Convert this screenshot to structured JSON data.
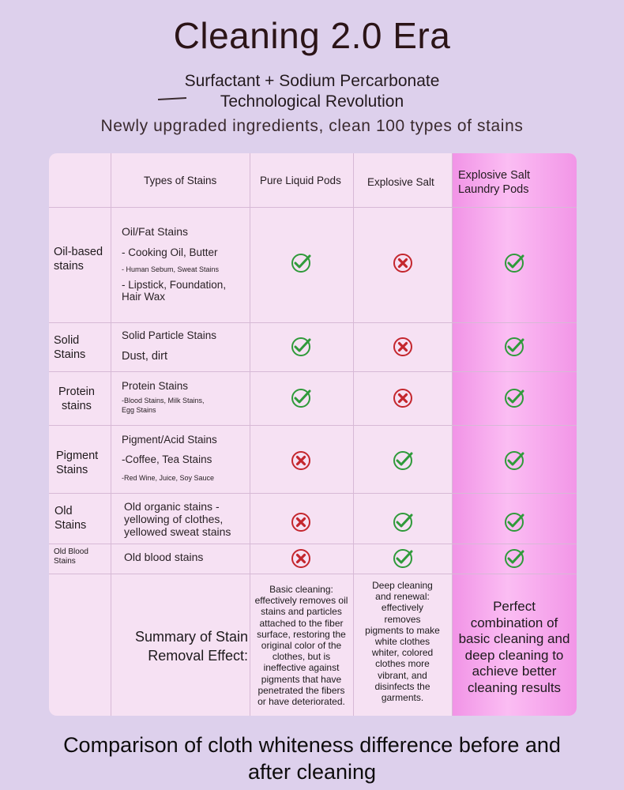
{
  "header": {
    "title": "Cleaning 2.0 Era",
    "subtitle_line1": "Surfactant + Sodium Percarbonate",
    "subtitle_line2": "Technological Revolution",
    "tagline": "Newly upgraded ingredients, clean 100 types of stains"
  },
  "table": {
    "headers": {
      "types": "Types of Stains",
      "col1": "Pure Liquid Pods",
      "col2": "Explosive Salt",
      "col3_line1": "Explosive Salt",
      "col3_line2": "Laundry Pods"
    },
    "rows": [
      {
        "category_line1": "Oil-based",
        "category_line2": "stains",
        "stain_lines": [
          "Oil/Fat Stains",
          "- Cooking Oil, Butter",
          "- Human Sebum, Sweat Stains",
          "- Lipstick, Foundation,",
          "Hair Wax"
        ],
        "marks": [
          "check",
          "cross",
          "check"
        ]
      },
      {
        "category_line1": "Solid",
        "category_line2": "Stains",
        "stain_lines": [
          "Solid Particle Stains",
          "Dust, dirt"
        ],
        "marks": [
          "check",
          "cross",
          "check"
        ]
      },
      {
        "category_line1": "Protein",
        "category_line2": "stains",
        "stain_lines": [
          "Protein Stains",
          "-Blood Stains, Milk Stains,",
          "Egg Stains"
        ],
        "marks": [
          "check",
          "cross",
          "check"
        ]
      },
      {
        "category_line1": "Pigment",
        "category_line2": "Stains",
        "stain_lines": [
          "Pigment/Acid Stains",
          "-Coffee, Tea Stains",
          "-Red Wine, Juice, Soy Sauce"
        ],
        "marks": [
          "cross",
          "check",
          "check"
        ]
      },
      {
        "category_line1": "Old",
        "category_line2": "Stains",
        "stain_lines": [
          "Old organic stains -",
          "yellowing of clothes,",
          "yellowed sweat stains"
        ],
        "marks": [
          "cross",
          "check",
          "check"
        ]
      },
      {
        "category_line1": "Old Blood",
        "category_line2": "Stains",
        "stain_lines": [
          "Old blood stains"
        ],
        "marks": [
          "cross",
          "check",
          "check"
        ]
      }
    ],
    "summary": {
      "label_line1": "Summary of Stain",
      "label_line2": "Removal Effect:",
      "col1_lines": [
        "Basic cleaning:",
        "effectively removes oil",
        "stains and particles",
        "attached to the fiber",
        "surface, restoring the",
        "original color of the",
        "clothes, but is",
        "ineffective against",
        "pigments that have",
        "penetrated the fibers",
        "or have deteriorated."
      ],
      "col2_lines": [
        "Deep cleaning",
        "and renewal:",
        "effectively",
        "removes",
        "pigments to make",
        "white clothes",
        "whiter, colored",
        "clothes more",
        "vibrant, and",
        "disinfects the",
        "garments."
      ],
      "col3_lines": [
        "Perfect",
        "combination of",
        "basic cleaning and",
        "deep cleaning to",
        "achieve better",
        "cleaning results"
      ]
    }
  },
  "footer": {
    "line1": "Comparison of cloth whiteness difference before and",
    "line2": "after cleaning"
  },
  "colors": {
    "check": "#2f9a3a",
    "cross": "#c4262d",
    "highlight": "#f193e6",
    "background": "#ddd0ec"
  }
}
